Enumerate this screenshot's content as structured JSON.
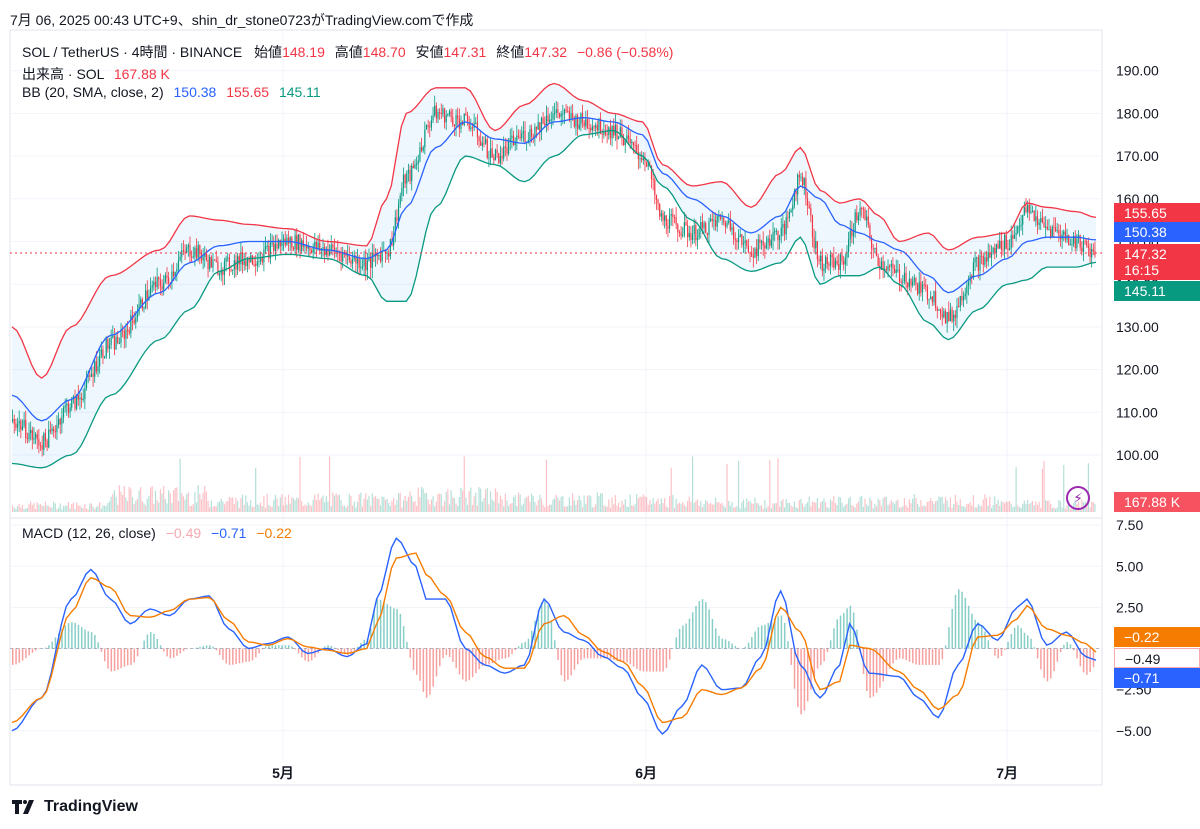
{
  "caption": "7月 06, 2025 00:43 UTC+9、shin_dr_stone0723がTradingView.comで作成",
  "brand": "TradingView",
  "header": {
    "symbol": "SOL / TetherUS · 4時間 · BINANCE",
    "open_label": "始値",
    "open": "148.19",
    "high_label": "高値",
    "high": "148.70",
    "low_label": "安値",
    "low": "147.31",
    "close_label": "終値",
    "close": "147.32",
    "change": "−0.86 (−0.58%)",
    "volume_label": "出来高 · SOL",
    "volume": "167.88 K",
    "bb_label": "BB (20, SMA, close, 2)",
    "bb_mid": "150.38",
    "bb_upper": "155.65",
    "bb_lower": "145.11",
    "macd_label": "MACD (12, 26, close)",
    "macd_hist": "−0.49",
    "macd_line": "−0.71",
    "macd_signal": "−0.22"
  },
  "badges": {
    "upper": "155.65",
    "mid": "150.38",
    "price": "147.32",
    "countdown": "16:15",
    "lower": "145.11",
    "volume": "167.88 K",
    "macd_signal": "−0.22",
    "macd_hist": "−0.49",
    "macd_line": "−0.71"
  },
  "colors": {
    "up": "#089981",
    "down": "#f23645",
    "bb_mid": "#2962ff",
    "bb_upper": "#f23645",
    "bb_lower": "#089981",
    "macd": "#2962ff",
    "signal": "#f57c00"
  },
  "chart_data": {
    "type": "line",
    "price_axis": {
      "ticks": [
        190,
        180,
        170,
        160,
        150,
        140,
        130,
        120,
        110,
        100
      ],
      "tick_labels": [
        "190.00",
        "180.00",
        "170.00",
        "160.00",
        "150.00",
        "140.00",
        "130.00",
        "120.00",
        "110.00",
        "100.00"
      ]
    },
    "macd_axis": {
      "ticks": [
        7.5,
        5,
        2.5,
        0,
        -2.5,
        -5
      ],
      "tick_labels": [
        "7.50",
        "5.00",
        "2.50",
        "",
        "−2.50",
        "−5.00"
      ]
    },
    "time_axis": {
      "labels": [
        "5月",
        "6月",
        "7月"
      ]
    },
    "price_keypoints": [
      [
        0,
        108
      ],
      [
        3,
        103
      ],
      [
        6,
        112
      ],
      [
        10,
        126
      ],
      [
        15,
        140
      ],
      [
        18,
        148
      ],
      [
        21,
        144
      ],
      [
        24,
        146
      ],
      [
        28,
        150
      ],
      [
        32,
        148
      ],
      [
        36,
        145
      ],
      [
        38,
        148
      ],
      [
        40,
        165
      ],
      [
        43,
        180
      ],
      [
        46,
        178
      ],
      [
        49,
        170
      ],
      [
        52,
        175
      ],
      [
        55,
        180
      ],
      [
        58,
        178
      ],
      [
        61,
        176
      ],
      [
        64,
        170
      ],
      [
        66,
        155
      ],
      [
        69,
        152
      ],
      [
        72,
        155
      ],
      [
        75,
        148
      ],
      [
        78,
        152
      ],
      [
        80,
        165
      ],
      [
        82,
        145
      ],
      [
        84,
        145
      ],
      [
        86,
        157
      ],
      [
        88,
        145
      ],
      [
        90,
        142
      ],
      [
        93,
        138
      ],
      [
        95,
        132
      ],
      [
        98,
        145
      ],
      [
        101,
        150
      ],
      [
        103,
        157
      ],
      [
        105,
        153
      ],
      [
        108,
        150
      ],
      [
        110,
        147.32
      ]
    ],
    "bb_upper_keypoints": [
      [
        0,
        130
      ],
      [
        3,
        118
      ],
      [
        6,
        130
      ],
      [
        10,
        142
      ],
      [
        15,
        148
      ],
      [
        18,
        156
      ],
      [
        21,
        155
      ],
      [
        24,
        154
      ],
      [
        28,
        153
      ],
      [
        32,
        150
      ],
      [
        36,
        149
      ],
      [
        38,
        160
      ],
      [
        40,
        180
      ],
      [
        43,
        186
      ],
      [
        46,
        186
      ],
      [
        49,
        176
      ],
      [
        52,
        182
      ],
      [
        55,
        187
      ],
      [
        58,
        183
      ],
      [
        61,
        180
      ],
      [
        64,
        178
      ],
      [
        66,
        168
      ],
      [
        69,
        163
      ],
      [
        72,
        164
      ],
      [
        75,
        158
      ],
      [
        78,
        166
      ],
      [
        80,
        172
      ],
      [
        82,
        162
      ],
      [
        84,
        159
      ],
      [
        86,
        160
      ],
      [
        88,
        156
      ],
      [
        90,
        150
      ],
      [
        93,
        152
      ],
      [
        95,
        148
      ],
      [
        98,
        151
      ],
      [
        101,
        152
      ],
      [
        103,
        159
      ],
      [
        105,
        158
      ],
      [
        108,
        157
      ],
      [
        110,
        155.65
      ]
    ],
    "bb_mid_keypoints": [
      [
        0,
        114
      ],
      [
        3,
        108
      ],
      [
        6,
        113
      ],
      [
        10,
        128
      ],
      [
        15,
        138
      ],
      [
        18,
        145
      ],
      [
        21,
        149
      ],
      [
        24,
        150
      ],
      [
        28,
        150
      ],
      [
        32,
        148
      ],
      [
        36,
        146
      ],
      [
        38,
        148
      ],
      [
        40,
        158
      ],
      [
        43,
        172
      ],
      [
        46,
        178
      ],
      [
        49,
        174
      ],
      [
        52,
        173
      ],
      [
        55,
        178
      ],
      [
        58,
        179
      ],
      [
        61,
        178
      ],
      [
        64,
        175
      ],
      [
        66,
        166
      ],
      [
        69,
        160
      ],
      [
        72,
        156
      ],
      [
        75,
        152
      ],
      [
        78,
        156
      ],
      [
        80,
        163
      ],
      [
        82,
        160
      ],
      [
        84,
        154
      ],
      [
        86,
        152
      ],
      [
        88,
        150
      ],
      [
        90,
        148
      ],
      [
        93,
        142
      ],
      [
        95,
        138
      ],
      [
        98,
        142
      ],
      [
        101,
        146
      ],
      [
        103,
        150
      ],
      [
        105,
        151
      ],
      [
        108,
        151
      ],
      [
        110,
        150.38
      ]
    ],
    "bb_lower_keypoints": [
      [
        0,
        98
      ],
      [
        3,
        97
      ],
      [
        6,
        100
      ],
      [
        10,
        114
      ],
      [
        15,
        127
      ],
      [
        18,
        134
      ],
      [
        21,
        143
      ],
      [
        24,
        146
      ],
      [
        28,
        147
      ],
      [
        32,
        146
      ],
      [
        36,
        142
      ],
      [
        38,
        136
      ],
      [
        40,
        136
      ],
      [
        43,
        158
      ],
      [
        46,
        170
      ],
      [
        49,
        168
      ],
      [
        52,
        164
      ],
      [
        55,
        170
      ],
      [
        58,
        175
      ],
      [
        61,
        176
      ],
      [
        64,
        170
      ],
      [
        66,
        163
      ],
      [
        69,
        155
      ],
      [
        72,
        146
      ],
      [
        75,
        143
      ],
      [
        78,
        145
      ],
      [
        80,
        151
      ],
      [
        82,
        140
      ],
      [
        84,
        142
      ],
      [
        86,
        142
      ],
      [
        88,
        144
      ],
      [
        90,
        140
      ],
      [
        93,
        131
      ],
      [
        95,
        127
      ],
      [
        98,
        134
      ],
      [
        101,
        140
      ],
      [
        103,
        141
      ],
      [
        105,
        144
      ],
      [
        108,
        144
      ],
      [
        110,
        145.11
      ]
    ],
    "macd_keypoints": [
      [
        0,
        -5
      ],
      [
        3,
        -3
      ],
      [
        6,
        3
      ],
      [
        8,
        4.8
      ],
      [
        10,
        3
      ],
      [
        12,
        1.5
      ],
      [
        14,
        2.4
      ],
      [
        16,
        2
      ],
      [
        18,
        3
      ],
      [
        20,
        3.2
      ],
      [
        22,
        1.2
      ],
      [
        24,
        0
      ],
      [
        26,
        0.3
      ],
      [
        28,
        0.7
      ],
      [
        30,
        -0.3
      ],
      [
        32,
        0
      ],
      [
        34,
        -0.5
      ],
      [
        36,
        0.3
      ],
      [
        37,
        3
      ],
      [
        39,
        6.7
      ],
      [
        41,
        5
      ],
      [
        42,
        3
      ],
      [
        44,
        3
      ],
      [
        46,
        0
      ],
      [
        48,
        -1
      ],
      [
        50,
        -1.5
      ],
      [
        52,
        -1
      ],
      [
        54,
        3
      ],
      [
        56,
        1
      ],
      [
        58,
        0.5
      ],
      [
        60,
        -0.5
      ],
      [
        62,
        -1.2
      ],
      [
        64,
        -3
      ],
      [
        66,
        -5.2
      ],
      [
        68,
        -3.5
      ],
      [
        70,
        -1
      ],
      [
        72,
        -2.5
      ],
      [
        74,
        -2.4
      ],
      [
        76,
        -0.5
      ],
      [
        78,
        3.5
      ],
      [
        80,
        -1
      ],
      [
        82,
        -3
      ],
      [
        84,
        -1
      ],
      [
        85,
        1.5
      ],
      [
        87,
        -1.5
      ],
      [
        90,
        -1.7
      ],
      [
        92,
        -3
      ],
      [
        94,
        -4.2
      ],
      [
        96,
        -1
      ],
      [
        98,
        1.5
      ],
      [
        100,
        0.5
      ],
      [
        102,
        2.5
      ],
      [
        103,
        3
      ],
      [
        105,
        0.2
      ],
      [
        107,
        1
      ],
      [
        109,
        -0.5
      ],
      [
        110,
        -0.71
      ]
    ],
    "signal_keypoints": [
      [
        0,
        -4.5
      ],
      [
        3,
        -3
      ],
      [
        6,
        2.2
      ],
      [
        8,
        4.3
      ],
      [
        10,
        3.7
      ],
      [
        12,
        2
      ],
      [
        14,
        1.9
      ],
      [
        16,
        2.3
      ],
      [
        18,
        3
      ],
      [
        20,
        3.1
      ],
      [
        22,
        1.7
      ],
      [
        24,
        0.4
      ],
      [
        26,
        0.2
      ],
      [
        28,
        0.6
      ],
      [
        30,
        0.1
      ],
      [
        32,
        -0.1
      ],
      [
        34,
        -0.3
      ],
      [
        36,
        0
      ],
      [
        37,
        1.5
      ],
      [
        39,
        5.5
      ],
      [
        41,
        5.8
      ],
      [
        42,
        4.5
      ],
      [
        44,
        3.2
      ],
      [
        46,
        1
      ],
      [
        48,
        -0.5
      ],
      [
        50,
        -1.2
      ],
      [
        52,
        -1.2
      ],
      [
        54,
        1.5
      ],
      [
        56,
        2
      ],
      [
        58,
        0.8
      ],
      [
        60,
        -0.2
      ],
      [
        62,
        -0.8
      ],
      [
        64,
        -2.3
      ],
      [
        66,
        -4.5
      ],
      [
        68,
        -4.2
      ],
      [
        70,
        -2.5
      ],
      [
        72,
        -2.8
      ],
      [
        74,
        -2.4
      ],
      [
        76,
        -1.2
      ],
      [
        78,
        2.5
      ],
      [
        80,
        1
      ],
      [
        82,
        -2.5
      ],
      [
        84,
        -2
      ],
      [
        85,
        0.2
      ],
      [
        87,
        0
      ],
      [
        90,
        -1.4
      ],
      [
        92,
        -2.5
      ],
      [
        94,
        -3.7
      ],
      [
        96,
        -2.8
      ],
      [
        98,
        0.7
      ],
      [
        100,
        0.8
      ],
      [
        102,
        1.8
      ],
      [
        103,
        2.6
      ],
      [
        105,
        1.2
      ],
      [
        107,
        0.8
      ],
      [
        109,
        0.3
      ],
      [
        110,
        -0.22
      ]
    ],
    "volume_peaks": [
      0.3,
      0.75,
      0.5,
      0.55,
      0.7,
      0.55,
      0.5,
      0.4,
      0.45,
      0.5,
      0.35
    ],
    "current_price": 147.32
  }
}
